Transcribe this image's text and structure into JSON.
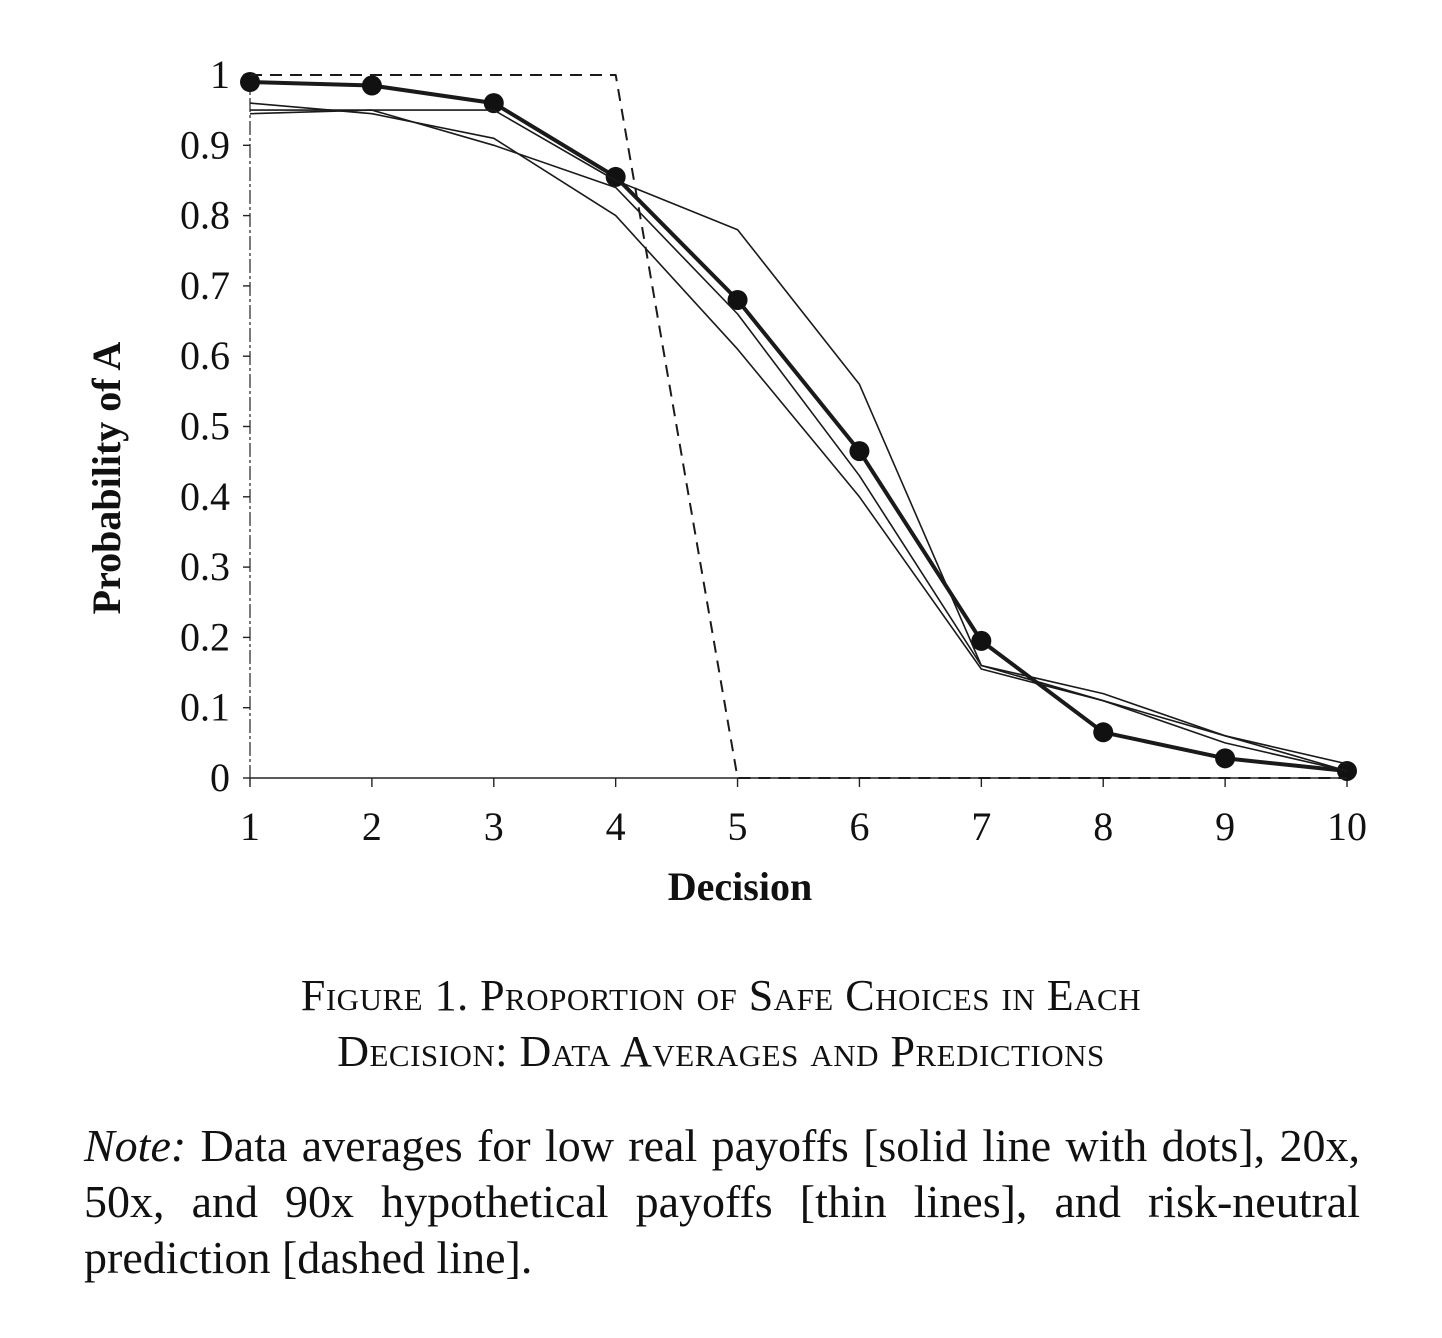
{
  "chart_data": {
    "type": "line",
    "xlabel": "Decision",
    "ylabel": "Probability of A",
    "categories": [
      "1",
      "2",
      "3",
      "4",
      "5",
      "6",
      "7",
      "8",
      "9",
      "10"
    ],
    "x": [
      1,
      2,
      3,
      4,
      5,
      6,
      7,
      8,
      9,
      10
    ],
    "xlim": [
      1,
      10
    ],
    "ylim": [
      0,
      1
    ],
    "yticks": [
      "0",
      "0.1",
      "0.2",
      "0.3",
      "0.4",
      "0.5",
      "0.6",
      "0.7",
      "0.8",
      "0.9",
      "1"
    ],
    "series": [
      {
        "name": "low real payoffs",
        "style": "solid-dots",
        "values": [
          0.99,
          0.985,
          0.96,
          0.855,
          0.68,
          0.465,
          0.195,
          0.065,
          0.028,
          0.01
        ]
      },
      {
        "name": "20x hypothetical",
        "style": "thin",
        "values": [
          0.95,
          0.95,
          0.95,
          0.85,
          0.78,
          0.56,
          0.16,
          0.11,
          0.06,
          0.01
        ]
      },
      {
        "name": "50x hypothetical",
        "style": "thin",
        "values": [
          0.96,
          0.945,
          0.91,
          0.8,
          0.61,
          0.4,
          0.155,
          0.11,
          0.05,
          0.01
        ]
      },
      {
        "name": "90x hypothetical",
        "style": "thin",
        "values": [
          0.945,
          0.95,
          0.9,
          0.84,
          0.66,
          0.43,
          0.16,
          0.12,
          0.06,
          0.02
        ]
      },
      {
        "name": "risk-neutral prediction",
        "style": "dashed",
        "values": [
          1,
          1,
          1,
          1,
          0,
          0,
          0,
          0,
          0,
          0
        ]
      }
    ],
    "grid": false,
    "legend": "none"
  },
  "caption": {
    "line1": "Figure 1. Proportion of Safe Choices in Each",
    "line2": "Decision: Data Averages and Predictions"
  },
  "note": {
    "label": "Note:",
    "text": " Data averages for low real payoffs [solid line with dots], 20x, 50x, and 90x hypothetical payoffs [thin lines], and risk-neutral prediction [dashed line]."
  }
}
